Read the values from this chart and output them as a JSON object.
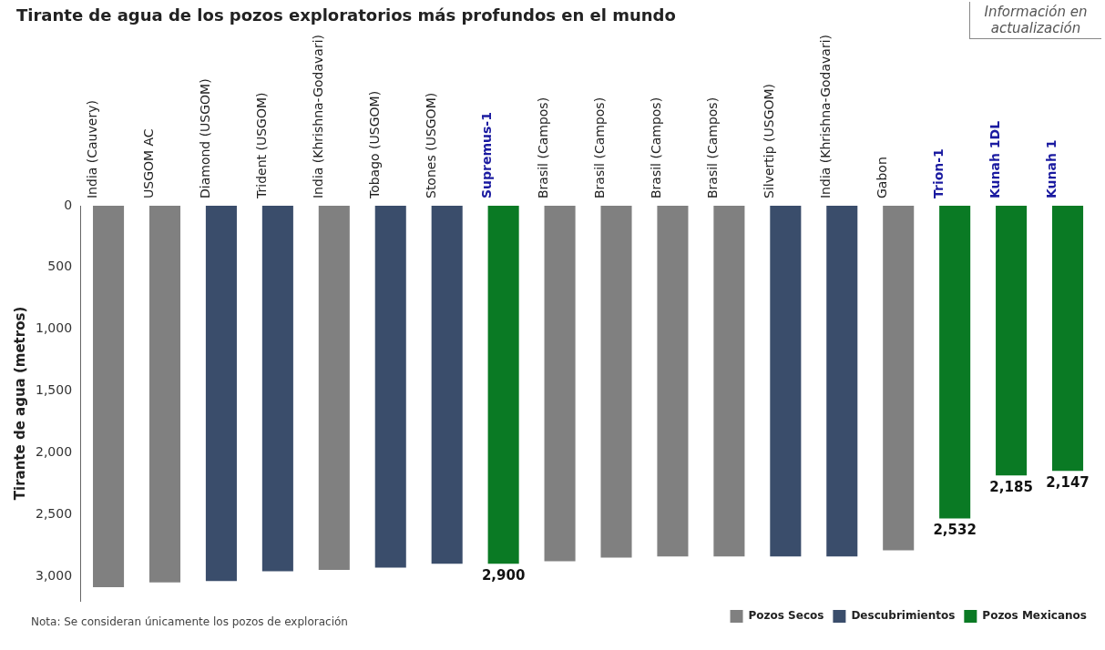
{
  "chart_data": {
    "type": "bar",
    "title": "Tirante de agua de los pozos exploratorios más profundos en el mundo",
    "ylabel": "Tirante de agua (metros)",
    "categories": [
      "India (Cauvery)",
      "USGOM AC",
      "Diamond (USGOM)",
      "Trident (USGOM)",
      "India (Khrishna-Godavari)",
      "Tobago (USGOM)",
      "Stones (USGOM)",
      "Supremus-1",
      "Brasil (Campos)",
      "Brasil (Campos)",
      "Brasil (Campos)",
      "Brasil (Campos)",
      "Silvertip (USGOM)",
      "India (Khrishna-Godavari)",
      "Gabon",
      "Trion-1",
      "Kunah 1DL",
      "Kunah 1"
    ],
    "series": [
      {
        "name": "Pozos Secos",
        "color": "#808080",
        "values": [
          3090,
          3050,
          null,
          null,
          2950,
          null,
          null,
          null,
          2880,
          2850,
          2840,
          2840,
          null,
          null,
          2790,
          null,
          null,
          null
        ]
      },
      {
        "name": "Descubrimientos",
        "color": "#3a4d6b",
        "values": [
          null,
          null,
          3040,
          2960,
          null,
          2930,
          2900,
          null,
          null,
          null,
          null,
          null,
          2840,
          2840,
          null,
          null,
          null,
          null
        ]
      },
      {
        "name": "Pozos Mexicanos",
        "color": "#0a7a24",
        "values": [
          null,
          null,
          null,
          null,
          null,
          null,
          null,
          2900,
          null,
          null,
          null,
          null,
          null,
          null,
          null,
          2532,
          2185,
          2147
        ],
        "value_labels": [
          null,
          null,
          null,
          null,
          null,
          null,
          null,
          "2,900",
          null,
          null,
          null,
          null,
          null,
          null,
          null,
          "2,532",
          "2,185",
          "2,147"
        ]
      }
    ],
    "ylim": [
      3200,
      0
    ],
    "yticks": [
      0,
      500,
      {
        "value": 1000,
        "label": "1,000"
      },
      {
        "value": 1500,
        "label": "1,500"
      },
      {
        "value": 2000,
        "label": "2,000"
      },
      {
        "value": 2500,
        "label": "2,500"
      },
      {
        "value": 3000,
        "label": "3,000"
      }
    ],
    "legend": "bottom right",
    "annotations": [
      "Información en actualización",
      "Nota: Se consideran únicamente los pozos de exploración"
    ]
  }
}
